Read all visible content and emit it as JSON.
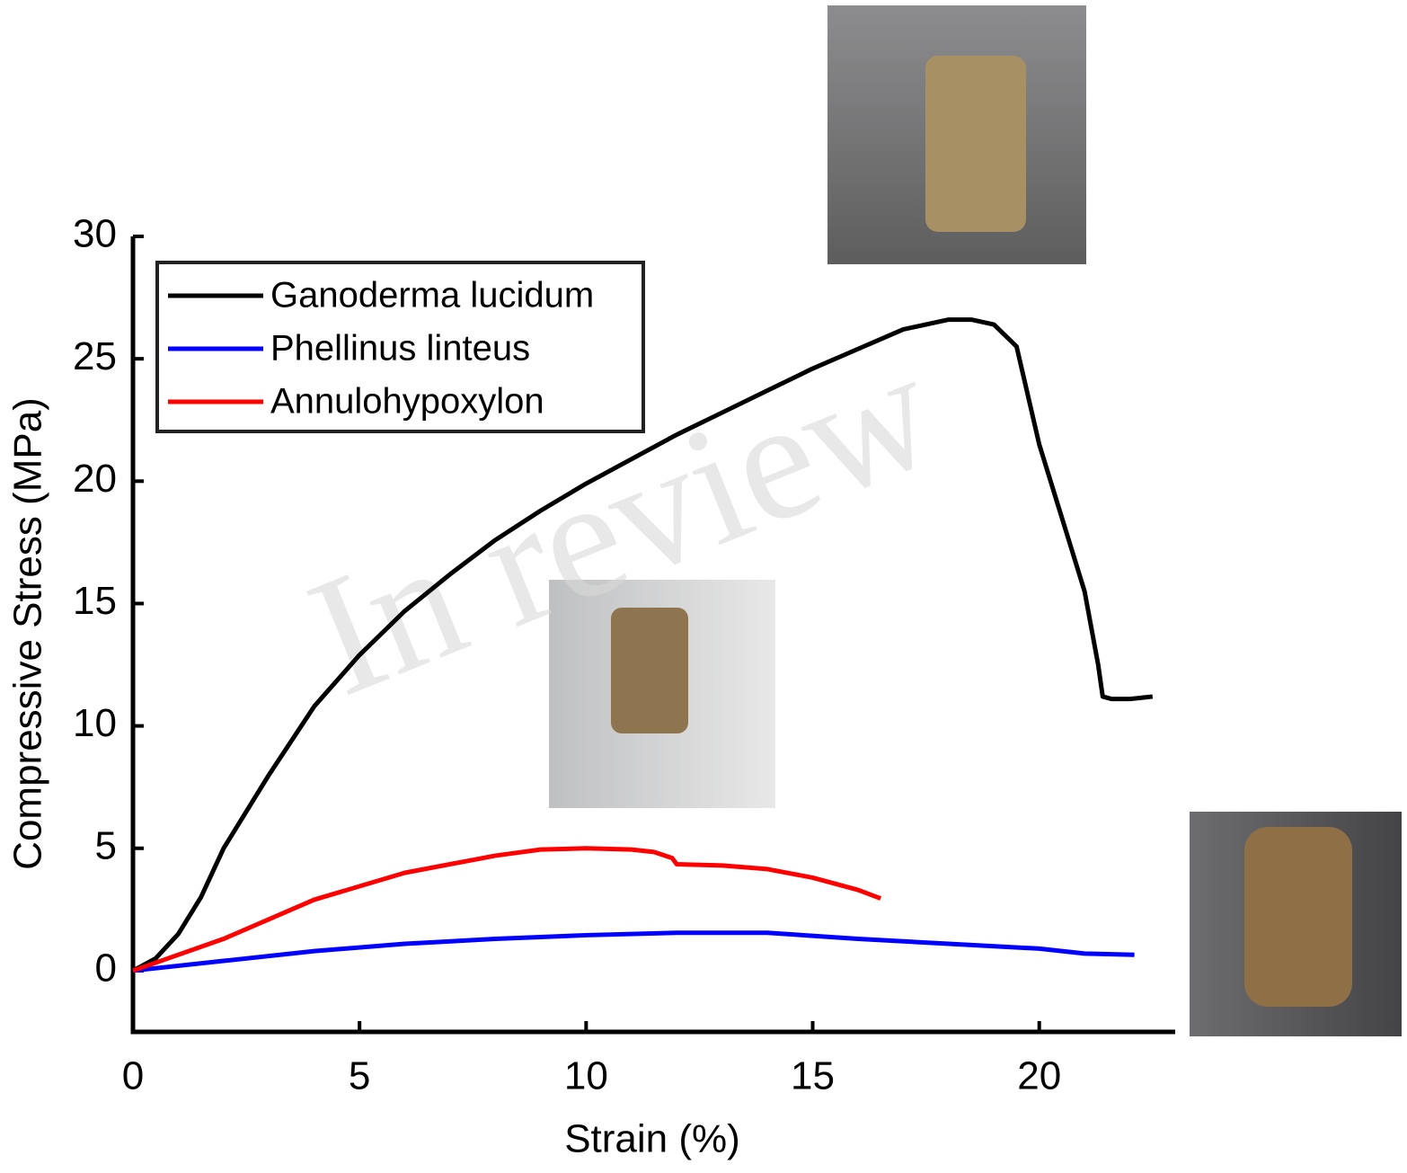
{
  "chart_data": {
    "type": "line",
    "xlabel": "Strain (%)",
    "ylabel": "Compressive Stress (MPa)",
    "watermark": "In review",
    "xlim": [
      0,
      23
    ],
    "xticks": [
      0,
      5,
      10,
      15,
      20
    ],
    "ylim": [
      -2.5,
      30
    ],
    "yticks": [
      0,
      5,
      10,
      15,
      20,
      25,
      30
    ],
    "legend": "upper-left",
    "series": [
      {
        "name": "Ganoderma lucidum",
        "color": "#000000",
        "x": [
          0,
          0.5,
          1,
          1.5,
          2,
          3,
          4,
          5,
          6,
          7,
          8,
          9,
          10,
          11,
          12,
          13,
          14,
          15,
          16,
          17,
          18,
          18.5,
          19,
          19.5,
          20,
          20.5,
          21,
          21.2,
          21.3,
          21.4,
          21.6,
          22,
          22.5
        ],
        "values": [
          0,
          0.5,
          1.5,
          3,
          5,
          8,
          10.8,
          12.9,
          14.7,
          16.2,
          17.6,
          18.8,
          19.9,
          20.9,
          21.9,
          22.8,
          23.7,
          24.6,
          25.4,
          26.2,
          26.6,
          26.6,
          26.4,
          25.5,
          21.5,
          18.5,
          15.5,
          13.5,
          12.5,
          11.2,
          11.1,
          11.1,
          11.2
        ]
      },
      {
        "name": "Phellinus linteus",
        "color": "#0000ff",
        "x": [
          0,
          2,
          4,
          6,
          8,
          10,
          12,
          14,
          16,
          18,
          20,
          21,
          22.1
        ],
        "values": [
          0,
          0.4,
          0.8,
          1.1,
          1.3,
          1.45,
          1.55,
          1.55,
          1.3,
          1.1,
          0.9,
          0.7,
          0.65
        ]
      },
      {
        "name": "Annulohypoxylon",
        "color": "#ff0000",
        "x": [
          0,
          2,
          4,
          6,
          8,
          9,
          10,
          11,
          11.5,
          11.9,
          12,
          13,
          14,
          15,
          16,
          16.5
        ],
        "values": [
          0,
          1.3,
          2.9,
          4.0,
          4.7,
          4.95,
          5.0,
          4.95,
          4.85,
          4.6,
          4.35,
          4.3,
          4.15,
          3.8,
          3.3,
          2.95
        ]
      }
    ]
  }
}
